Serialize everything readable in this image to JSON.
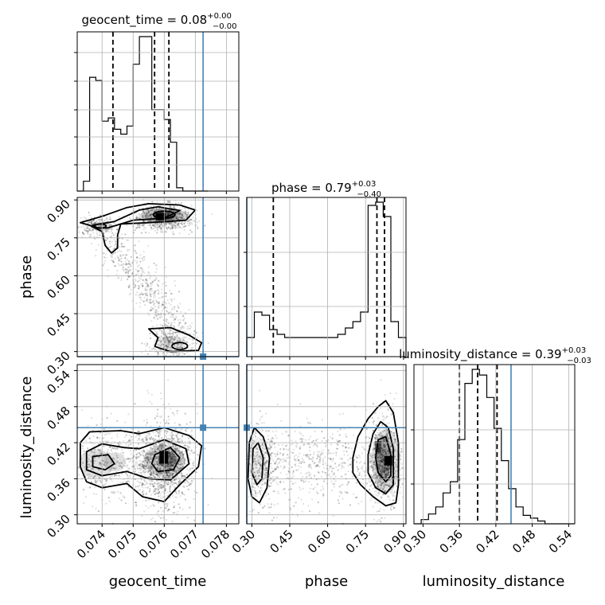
{
  "chart_data": {
    "type": "corner",
    "parameters": [
      "geocent_time",
      "phase",
      "luminosity_distance"
    ],
    "truth": {
      "geocent_time": 0.07725,
      "phase": 0.28,
      "luminosity_distance": 0.445
    },
    "ranges": {
      "geocent_time": [
        0.0732,
        0.0784
      ],
      "phase": [
        0.28,
        0.91
      ],
      "luminosity_distance": [
        0.285,
        0.55
      ]
    },
    "ticks": {
      "geocent_time": [
        "0.074",
        "0.075",
        "0.076",
        "0.077",
        "0.078"
      ],
      "phase": [
        "0.30",
        "0.45",
        "0.60",
        "0.75",
        "0.90"
      ],
      "luminosity_distance": [
        "0.30",
        "0.36",
        "0.42",
        "0.48",
        "0.54"
      ]
    },
    "tick_values": {
      "geocent_time": [
        0.074,
        0.075,
        0.076,
        0.077,
        0.078
      ],
      "phase": [
        0.3,
        0.45,
        0.6,
        0.75,
        0.9
      ],
      "luminosity_distance": [
        0.3,
        0.36,
        0.42,
        0.48,
        0.54
      ]
    },
    "titles": {
      "geocent_time": {
        "text": "geocent_time = 0.08",
        "plus": "+0.00",
        "minus": "−0.00"
      },
      "phase": {
        "text": "phase = 0.79",
        "plus": "+0.03",
        "minus": "−0.40"
      },
      "luminosity_distance": {
        "text": "luminosity_distance = 0.39",
        "plus": "+0.03",
        "minus": "−0.03"
      }
    },
    "axis_labels": {
      "x": [
        "geocent_time",
        "phase",
        "luminosity_distance"
      ],
      "y": [
        "phase",
        "luminosity_distance"
      ]
    },
    "histograms": {
      "geocent_time": {
        "edges": [
          0.0732,
          0.0734,
          0.0736,
          0.0738,
          0.074,
          0.0742,
          0.0744,
          0.0746,
          0.0748,
          0.075,
          0.0752,
          0.0754,
          0.0756,
          0.0758,
          0.076,
          0.0762,
          0.0764,
          0.0766,
          0.0768,
          0.077,
          0.0772,
          0.0774
        ],
        "counts": [
          0,
          6,
          70,
          68,
          43,
          45,
          38,
          35,
          40,
          78,
          95,
          95,
          50,
          50,
          44,
          30,
          2,
          0,
          0,
          0,
          0
        ]
      },
      "phase": {
        "edges": [
          0.28,
          0.31,
          0.34,
          0.37,
          0.4,
          0.43,
          0.46,
          0.49,
          0.52,
          0.55,
          0.58,
          0.61,
          0.64,
          0.67,
          0.7,
          0.73,
          0.76,
          0.79,
          0.82,
          0.85,
          0.88,
          0.91
        ],
        "counts": [
          12,
          28,
          26,
          17,
          14,
          12,
          12,
          12,
          12,
          12,
          12,
          12,
          14,
          18,
          22,
          28,
          95,
          97,
          88,
          22,
          12
        ]
      },
      "luminosity_distance": {
        "edges": [
          0.285,
          0.297,
          0.309,
          0.321,
          0.333,
          0.345,
          0.357,
          0.369,
          0.381,
          0.393,
          0.405,
          0.417,
          0.429,
          0.441,
          0.453,
          0.465,
          0.477,
          0.489,
          0.501,
          0.513,
          0.525,
          0.537,
          0.549
        ],
        "counts": [
          0,
          3,
          7,
          12,
          22,
          30,
          60,
          100,
          110,
          106,
          90,
          68,
          45,
          25,
          12,
          6,
          4,
          2,
          0,
          0,
          0,
          0
        ]
      }
    },
    "quantiles": {
      "geocent_time": [
        0.07435,
        0.07569,
        0.07615
      ],
      "phase": [
        0.385,
        0.795,
        0.825
      ],
      "luminosity_distance": [
        0.36,
        0.39,
        0.422
      ]
    },
    "grid": true
  }
}
